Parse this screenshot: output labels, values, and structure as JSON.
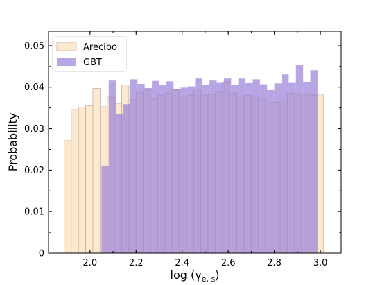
{
  "chart_data": {
    "type": "bar",
    "xlabel": {
      "main": "log (γ",
      "sub": "e, s",
      "close": ")"
    },
    "ylabel": "Probability",
    "xlim": [
      1.82,
      3.09
    ],
    "ylim": [
      0,
      0.0535
    ],
    "bin_width": 0.03125,
    "xticks": [
      {
        "value": 2.0,
        "label": "2.0"
      },
      {
        "value": 2.2,
        "label": "2.2"
      },
      {
        "value": 2.4,
        "label": "2.4"
      },
      {
        "value": 2.6,
        "label": "2.6"
      },
      {
        "value": 2.8,
        "label": "2.8"
      },
      {
        "value": 3.0,
        "label": "3.0"
      }
    ],
    "yticks": [
      {
        "value": 0,
        "label": "0"
      },
      {
        "value": 0.01,
        "label": "0.01"
      },
      {
        "value": 0.02,
        "label": "0.02"
      },
      {
        "value": 0.03,
        "label": "0.03"
      },
      {
        "value": 0.04,
        "label": "0.04"
      },
      {
        "value": 0.05,
        "label": "0.05"
      }
    ],
    "grid": false,
    "legend_position": "top-left",
    "series": [
      {
        "name": "Arecibo",
        "color": "#fde9cf",
        "edge": "#c0b4a4",
        "bin_start": 1.8875,
        "values": [
          0.0271,
          0.0346,
          0.0352,
          0.0355,
          0.0397,
          0.0353,
          0.0378,
          0.0361,
          0.0405,
          0.037,
          0.0388,
          0.0393,
          0.0371,
          0.038,
          0.0386,
          0.0394,
          0.0378,
          0.0381,
          0.0395,
          0.038,
          0.0382,
          0.039,
          0.0413,
          0.0386,
          0.0379,
          0.038,
          0.0379,
          0.0373,
          0.0363,
          0.0364,
          0.0367,
          0.0385,
          0.0383,
          0.0383,
          0.0381,
          0.0383
        ]
      },
      {
        "name": "GBT",
        "color": "#9b82d9",
        "alpha": 0.72,
        "bin_start": 2.05,
        "values": [
          0.0209,
          0.0416,
          0.0336,
          0.0359,
          0.0419,
          0.0408,
          0.0398,
          0.0415,
          0.0406,
          0.0414,
          0.0395,
          0.0399,
          0.0402,
          0.0421,
          0.0406,
          0.0416,
          0.0412,
          0.0421,
          0.0405,
          0.0421,
          0.0411,
          0.0419,
          0.0407,
          0.0393,
          0.0409,
          0.0431,
          0.0412,
          0.0453,
          0.0413,
          0.0441
        ]
      }
    ]
  }
}
